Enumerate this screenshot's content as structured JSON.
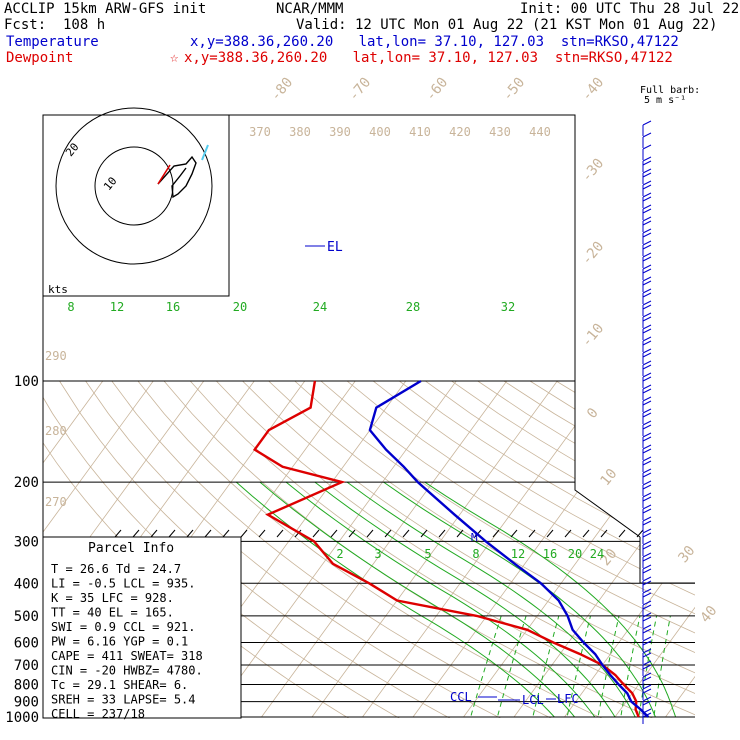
{
  "header": {
    "title_left": "ACCLIP 15km ARW-GFS init",
    "center": "NCAR/MMM",
    "init": "Init: 00 UTC Thu 28 Jul 22",
    "fcst": "Fcst:  108 h",
    "valid": "Valid: 12 UTC Mon 01 Aug 22 (21 KST Mon 01 Aug 22)",
    "temp_label": "Temperature",
    "temp_info": "x,y=388.36,260.20   lat,lon= 37.10, 127.03  stn=RKSO,47122",
    "dew_label": "Dewpoint",
    "dew_info": "x,y=388.36,260.20   lat,lon= 37.10, 127.03  stn=RKSO,47122",
    "star": "☆",
    "full_barb": "Full barb:",
    "barb_unit": "5 m s⁻¹"
  },
  "colors": {
    "temperature": "#0000cc",
    "dewpoint": "#dd0000",
    "isotherm": "#c8b49a",
    "mixing_ratio": "#22aa22",
    "isobar": "#000000"
  },
  "chart_data": {
    "type": "line",
    "pressure_levels": [
      100,
      200,
      300,
      400,
      500,
      600,
      700,
      800,
      900,
      1000
    ],
    "isotherm_labels": [
      "-80",
      "-70",
      "-60",
      "-50",
      "-40",
      "-30",
      "-20",
      "-10",
      "0",
      "10",
      "20",
      "30",
      "40"
    ],
    "theta_labels_top": [
      "370",
      "380",
      "390",
      "400",
      "410",
      "420",
      "430",
      "440"
    ],
    "theta_labels_left": [
      "290",
      "280",
      "270"
    ],
    "mixing_labels_upper": [
      "8",
      "12",
      "16",
      "20",
      "24",
      "28",
      "32"
    ],
    "mixing_labels_lower": [
      "2",
      "3",
      "5",
      "8",
      "12",
      "16",
      "20",
      "24"
    ],
    "series": [
      {
        "name": "Temperature",
        "pressure": [
          100,
          120,
          140,
          160,
          180,
          200,
          250,
          300,
          350,
          400,
          450,
          500,
          550,
          600,
          650,
          700,
          750,
          800,
          850,
          900,
          950,
          1000
        ],
        "temperature_c": [
          -67,
          -72,
          -70,
          -64,
          -58,
          -53,
          -41,
          -31,
          -22,
          -14,
          -8,
          -4,
          -1,
          3,
          7,
          10,
          13,
          16,
          19,
          21,
          24,
          26.6
        ]
      },
      {
        "name": "Dewpoint",
        "pressure": [
          100,
          120,
          140,
          160,
          180,
          200,
          250,
          300,
          350,
          400,
          450,
          500,
          550,
          600,
          650,
          700,
          750,
          800,
          850,
          900,
          950,
          1000
        ],
        "dewpoint_c": [
          -88,
          -85,
          -90,
          -90,
          -82,
          -68,
          -78,
          -65,
          -58,
          -48,
          -40,
          -22,
          -10,
          -3,
          4,
          10,
          14,
          17,
          20,
          22,
          23,
          24.7
        ]
      }
    ],
    "annotations": {
      "el": "EL",
      "ccl": "CCL",
      "lcl": "LCL",
      "lfc": "LFC",
      "m": "M"
    },
    "hodograph": {
      "units": "kts",
      "ring_labels": [
        "20",
        "10"
      ]
    },
    "parcel_info": {
      "title": "Parcel Info",
      "rows": [
        "T  =    26.6  Td =  24.7",
        "LI =    -0.5  LCL =  935.",
        "K  =     35  LFC =  928.",
        "TT =     40  EL  =  165.",
        "SWI =   0.9  CCL =  921.",
        "PW =   6.16  YGP =   0.1",
        "CAPE =  411  SWEAT=  318",
        "CIN =   -20  HWBZ= 4780.",
        "Tc =   29.1  SHEAR=   6.",
        "SREH =   33  LAPSE=   5.4",
        "CELL = 237/18"
      ]
    }
  }
}
